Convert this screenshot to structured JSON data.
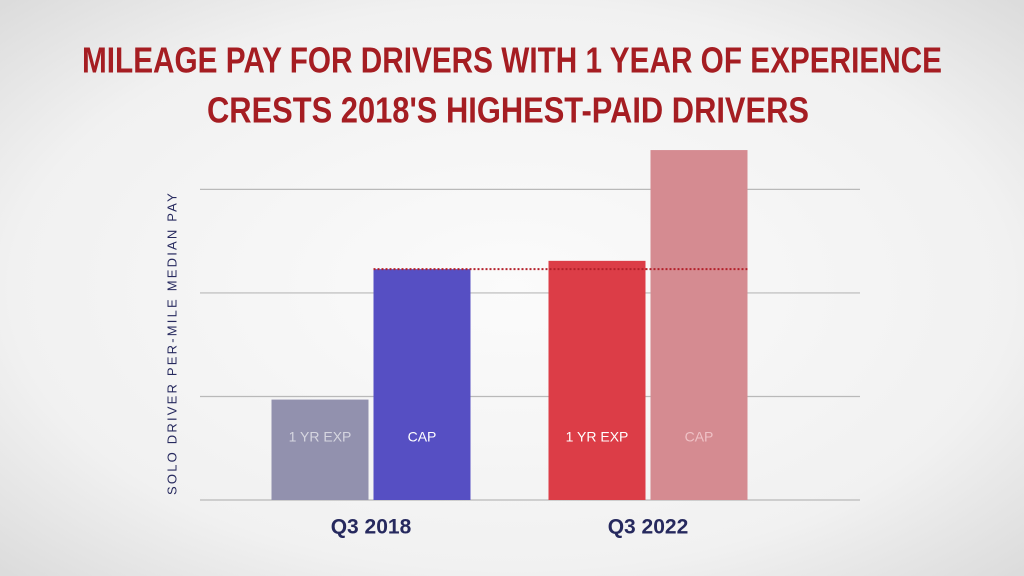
{
  "chart_data": {
    "type": "bar",
    "title": [
      "MILEAGE PAY FOR DRIVERS WITH 1 YEAR OF EXPERIENCE",
      "CRESTS 2018'S HIGHEST-PAID DRIVERS"
    ],
    "y_label": "SOLO DRIVER PER-MILE MEDIAN PAY",
    "categories": [
      "Q3 2018",
      "Q3 2022"
    ],
    "series": [
      {
        "name": "1 YR EXP",
        "colors": [
          "#9291ae",
          "#dc3d47"
        ],
        "label_colors": [
          "#d6d6e0",
          "#ffffff"
        ],
        "values": [
          0.97,
          2.31
        ]
      },
      {
        "name": "CAP",
        "colors": [
          "#564fc3",
          "#d58b91"
        ],
        "label_colors": [
          "#ffffff",
          "#efc2c6"
        ],
        "values": [
          2.23,
          3.38
        ]
      }
    ],
    "ylim": [
      0,
      3.4
    ],
    "yticks": [
      0,
      1,
      2,
      3
    ],
    "grid": true,
    "reference_line_color": "#b3202a"
  }
}
